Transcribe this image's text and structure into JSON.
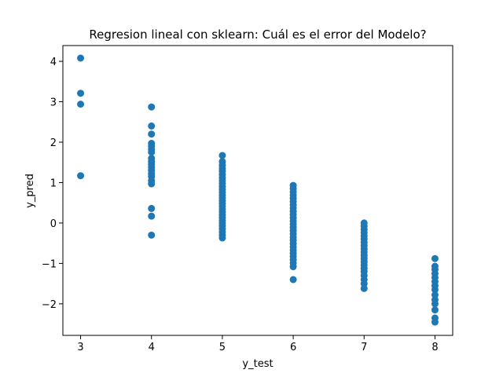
{
  "chart_data": {
    "type": "scatter",
    "title": "Regresion lineal con sklearn: Cuál es el error del Modelo?",
    "x_label": "y_test",
    "y_label": "y_pred",
    "color": "#1f77b4",
    "xlim": [
      2.75,
      8.25
    ],
    "ylim": [
      -2.78,
      4.39
    ],
    "xticks": [
      3,
      4,
      5,
      6,
      7,
      8
    ],
    "yticks": [
      {
        "value": -2,
        "label": "−2"
      },
      {
        "value": -1,
        "label": "−1"
      },
      0,
      1,
      2,
      3,
      4
    ],
    "x": [
      3,
      3,
      3,
      3,
      4,
      4,
      4,
      4,
      4,
      4,
      4,
      4,
      4,
      4,
      4,
      4,
      4,
      4,
      4,
      4,
      4,
      4,
      4,
      5,
      5,
      5,
      5,
      5,
      5,
      5,
      5,
      5,
      5,
      5,
      5,
      5,
      5,
      5,
      5,
      5,
      5,
      5,
      5,
      5,
      5,
      5,
      5,
      5,
      5,
      5,
      5,
      6,
      6,
      6,
      6,
      6,
      6,
      6,
      6,
      6,
      6,
      6,
      6,
      6,
      6,
      6,
      6,
      6,
      6,
      6,
      6,
      6,
      6,
      6,
      6,
      6,
      6,
      6,
      7,
      7,
      7,
      7,
      7,
      7,
      7,
      7,
      7,
      7,
      7,
      7,
      7,
      7,
      7,
      7,
      7,
      7,
      7,
      7,
      8,
      8,
      8,
      8,
      8,
      8,
      8,
      8,
      8,
      8,
      8,
      8,
      8,
      8
    ],
    "y": [
      4.08,
      3.21,
      2.94,
      1.17,
      2.87,
      2.4,
      2.2,
      1.97,
      1.9,
      1.82,
      1.75,
      1.6,
      1.52,
      1.45,
      1.38,
      1.3,
      1.22,
      1.15,
      1.05,
      0.97,
      0.36,
      0.17,
      -0.3,
      1.67,
      1.52,
      1.43,
      1.35,
      1.28,
      1.2,
      1.12,
      1.05,
      0.98,
      0.9,
      0.83,
      0.76,
      0.69,
      0.62,
      0.55,
      0.48,
      0.41,
      0.34,
      0.27,
      0.2,
      0.13,
      0.06,
      0.0,
      -0.07,
      -0.14,
      -0.22,
      -0.3,
      -0.37,
      0.93,
      0.85,
      0.77,
      0.69,
      0.61,
      0.53,
      0.45,
      0.37,
      0.29,
      0.21,
      0.13,
      0.05,
      -0.03,
      -0.11,
      -0.19,
      -0.27,
      -0.35,
      -0.43,
      -0.51,
      -0.59,
      -0.67,
      -0.75,
      -0.83,
      -0.91,
      -0.99,
      -1.08,
      -1.4,
      0.0,
      -0.08,
      -0.16,
      -0.24,
      -0.32,
      -0.4,
      -0.48,
      -0.56,
      -0.64,
      -0.72,
      -0.8,
      -0.88,
      -0.96,
      -1.04,
      -1.12,
      -1.2,
      -1.3,
      -1.4,
      -1.5,
      -1.62,
      -0.88,
      -1.07,
      -1.15,
      -1.25,
      -1.35,
      -1.45,
      -1.55,
      -1.65,
      -1.78,
      -1.9,
      -2.0,
      -2.15,
      -2.35,
      -2.45
    ]
  }
}
